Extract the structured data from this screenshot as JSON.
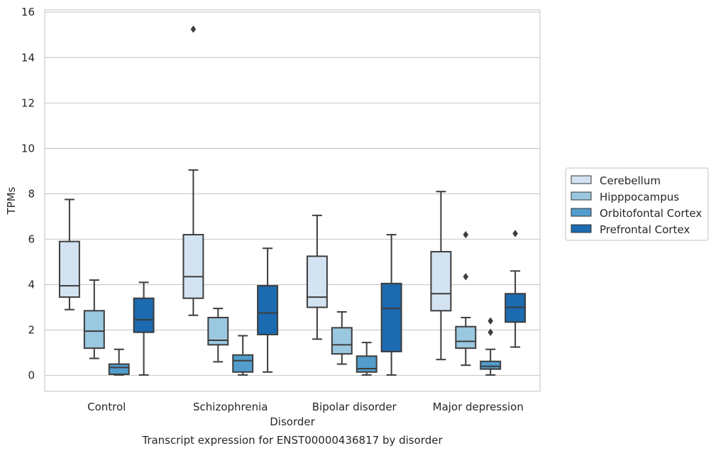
{
  "chart_data": {
    "type": "box",
    "caption": "Transcript expression for ENST00000436817 by disorder",
    "xlabel": "Disorder",
    "ylabel": "TPMs",
    "ylim": [
      -0.7,
      16.1
    ],
    "yticks": [
      0,
      2,
      4,
      6,
      8,
      10,
      12,
      14,
      16
    ],
    "grid": true,
    "legend_position": "right",
    "categories": [
      "Control",
      "Schizophrenia",
      "Bipolar disorder",
      "Major depression"
    ],
    "series": [
      {
        "name": "Cerebellum",
        "color": "#d3e3f2",
        "boxes": [
          {
            "whisker_low": 2.9,
            "q1": 3.45,
            "median": 3.95,
            "q3": 5.9,
            "whisker_high": 7.75,
            "outliers": []
          },
          {
            "whisker_low": 2.65,
            "q1": 3.4,
            "median": 4.35,
            "q3": 6.2,
            "whisker_high": 9.05,
            "outliers": [
              15.25
            ]
          },
          {
            "whisker_low": 1.6,
            "q1": 3.0,
            "median": 3.45,
            "q3": 5.25,
            "whisker_high": 7.05,
            "outliers": []
          },
          {
            "whisker_low": 0.7,
            "q1": 2.85,
            "median": 3.6,
            "q3": 5.45,
            "whisker_high": 8.1,
            "outliers": []
          }
        ]
      },
      {
        "name": "Hipppocampus",
        "color": "#9ac8e0",
        "boxes": [
          {
            "whisker_low": 0.75,
            "q1": 1.2,
            "median": 1.95,
            "q3": 2.85,
            "whisker_high": 4.2,
            "outliers": []
          },
          {
            "whisker_low": 0.6,
            "q1": 1.35,
            "median": 1.55,
            "q3": 2.55,
            "whisker_high": 2.95,
            "outliers": []
          },
          {
            "whisker_low": 0.5,
            "q1": 0.95,
            "median": 1.35,
            "q3": 2.1,
            "whisker_high": 2.8,
            "outliers": []
          },
          {
            "whisker_low": 0.45,
            "q1": 1.2,
            "median": 1.5,
            "q3": 2.15,
            "whisker_high": 2.55,
            "outliers": [
              4.35,
              6.2
            ]
          }
        ]
      },
      {
        "name": "Orbitofontal Cortex",
        "color": "#529dcc",
        "boxes": [
          {
            "whisker_low": 0.02,
            "q1": 0.05,
            "median": 0.35,
            "q3": 0.5,
            "whisker_high": 1.15,
            "outliers": []
          },
          {
            "whisker_low": 0.02,
            "q1": 0.15,
            "median": 0.65,
            "q3": 0.9,
            "whisker_high": 1.75,
            "outliers": []
          },
          {
            "whisker_low": 0.02,
            "q1": 0.15,
            "median": 0.3,
            "q3": 0.85,
            "whisker_high": 1.45,
            "outliers": []
          },
          {
            "whisker_low": 0.02,
            "q1": 0.28,
            "median": 0.4,
            "q3": 0.62,
            "whisker_high": 1.15,
            "outliers": [
              1.9,
              2.4
            ]
          }
        ]
      },
      {
        "name": "Prefrontal Cortex",
        "color": "#1c6aaf",
        "boxes": [
          {
            "whisker_low": 0.02,
            "q1": 1.9,
            "median": 2.45,
            "q3": 3.4,
            "whisker_high": 4.1,
            "outliers": []
          },
          {
            "whisker_low": 0.15,
            "q1": 1.8,
            "median": 2.75,
            "q3": 3.95,
            "whisker_high": 5.6,
            "outliers": []
          },
          {
            "whisker_low": 0.02,
            "q1": 1.05,
            "median": 2.95,
            "q3": 4.05,
            "whisker_high": 6.2,
            "outliers": []
          },
          {
            "whisker_low": 1.25,
            "q1": 2.35,
            "median": 3.0,
            "q3": 3.6,
            "whisker_high": 4.6,
            "outliers": [
              6.25
            ]
          }
        ]
      }
    ]
  }
}
